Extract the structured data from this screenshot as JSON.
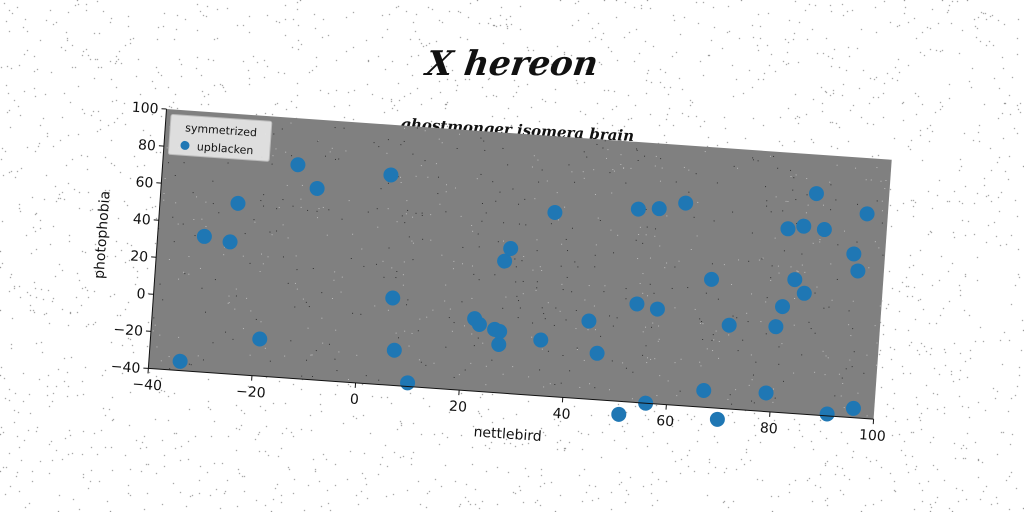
{
  "figure_title": "X hereon",
  "chart_data": {
    "type": "scatter",
    "title": "ghostmonger isomera brain",
    "xlabel": "nettlebird",
    "ylabel": "photophobia",
    "xlim": [
      -40,
      100
    ],
    "ylim": [
      -40,
      100
    ],
    "xticks": [
      "−40",
      "−20",
      "0",
      "20",
      "40",
      "60",
      "80",
      "100"
    ],
    "yticks": [
      "−40",
      "−20",
      "0",
      "20",
      "40",
      "60",
      "80",
      "100"
    ],
    "grid": false,
    "legend": {
      "title": "symmetrized",
      "placement": "top-left",
      "entries": [
        "upblacken"
      ]
    },
    "series": [
      {
        "name": "upblacken",
        "color": "#1f77b4",
        "points": [
          {
            "x": -34,
            "y": -35
          },
          {
            "x": -31,
            "y": 33
          },
          {
            "x": -26,
            "y": 31
          },
          {
            "x": -25,
            "y": 52
          },
          {
            "x": -19,
            "y": -20
          },
          {
            "x": -14,
            "y": 75
          },
          {
            "x": -10,
            "y": 63
          },
          {
            "x": 4,
            "y": 73
          },
          {
            "x": 6,
            "y": 7
          },
          {
            "x": 7,
            "y": -21
          },
          {
            "x": 10,
            "y": -38
          },
          {
            "x": 22,
            "y": -1
          },
          {
            "x": 23,
            "y": -4
          },
          {
            "x": 26,
            "y": -6
          },
          {
            "x": 27,
            "y": -14
          },
          {
            "x": 27,
            "y": -7
          },
          {
            "x": 27,
            "y": 31
          },
          {
            "x": 28,
            "y": 38
          },
          {
            "x": 35,
            "y": -10
          },
          {
            "x": 36,
            "y": 59
          },
          {
            "x": 44,
            "y": 2
          },
          {
            "x": 46,
            "y": -15
          },
          {
            "x": 51,
            "y": -47
          },
          {
            "x": 52,
            "y": 64
          },
          {
            "x": 53,
            "y": 13
          },
          {
            "x": 56,
            "y": 65
          },
          {
            "x": 56,
            "y": -40
          },
          {
            "x": 57,
            "y": 11
          },
          {
            "x": 61,
            "y": 69
          },
          {
            "x": 67,
            "y": -31
          },
          {
            "x": 67,
            "y": 29
          },
          {
            "x": 70,
            "y": -46
          },
          {
            "x": 71,
            "y": 5
          },
          {
            "x": 79,
            "y": -30
          },
          {
            "x": 80,
            "y": 6
          },
          {
            "x": 81,
            "y": 17
          },
          {
            "x": 81,
            "y": 59
          },
          {
            "x": 83,
            "y": 32
          },
          {
            "x": 84,
            "y": 61
          },
          {
            "x": 85,
            "y": 25
          },
          {
            "x": 86,
            "y": 79
          },
          {
            "x": 88,
            "y": 60
          },
          {
            "x": 91,
            "y": -39
          },
          {
            "x": 94,
            "y": 48
          },
          {
            "x": 95,
            "y": 39
          },
          {
            "x": 96,
            "y": 70
          },
          {
            "x": 96,
            "y": -35
          }
        ]
      }
    ]
  }
}
